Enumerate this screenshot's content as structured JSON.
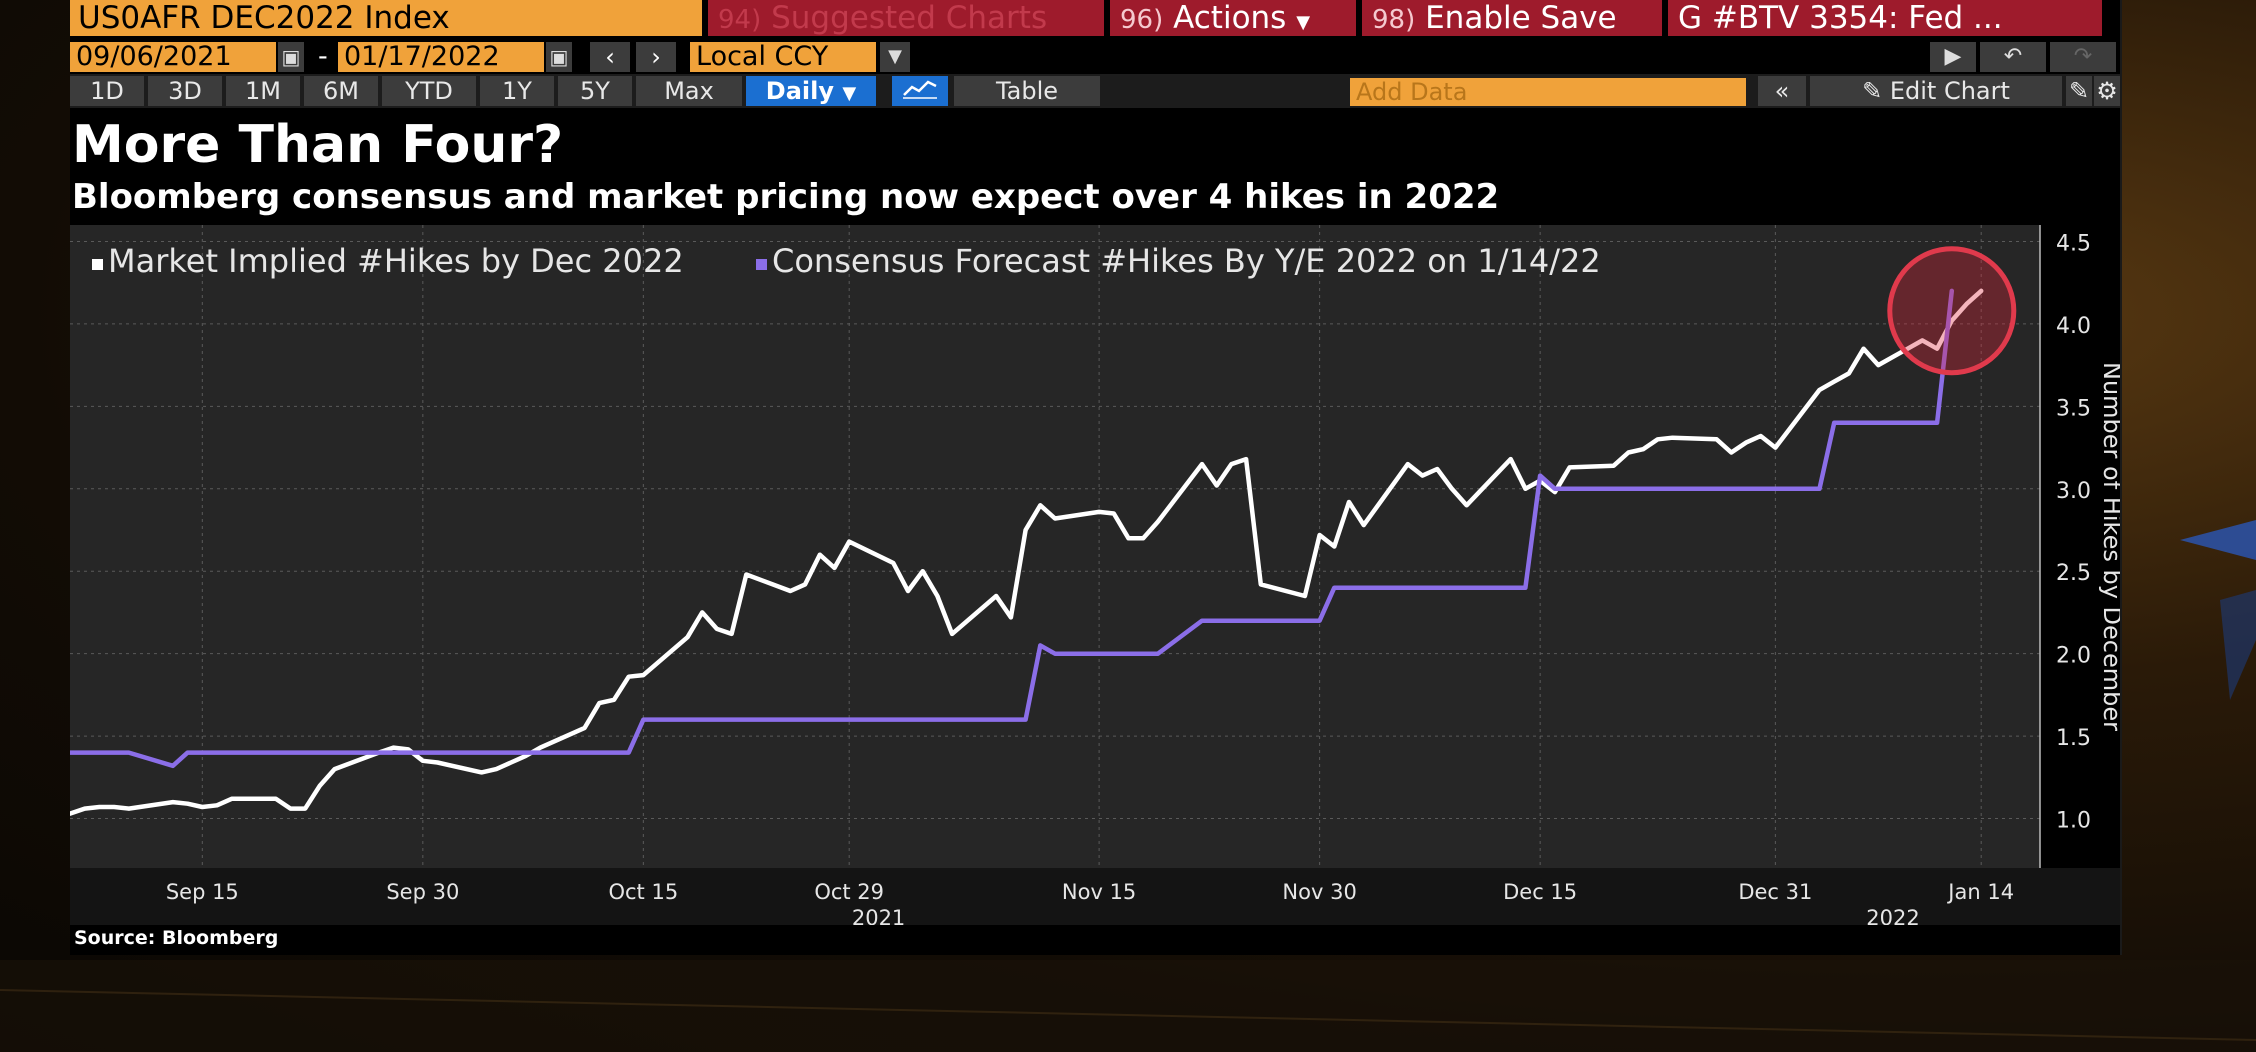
{
  "toolbar": {
    "ticker": "US0AFR DEC2022 Index",
    "suggested": {
      "num": "94)",
      "label": "Suggested Charts"
    },
    "actions": {
      "num": "96)",
      "label": "Actions"
    },
    "enable_save": {
      "num": "98)",
      "label": "Enable Save"
    },
    "news": "G #BTV 3354: Fed ...",
    "start_date": "09/06/2021",
    "end_date": "01/17/2022",
    "date_separator": "-",
    "currency": "Local CCY",
    "periods": [
      "1D",
      "3D",
      "1M",
      "6M",
      "YTD",
      "1Y",
      "5Y",
      "Max"
    ],
    "frequency": "Daily",
    "table_label": "Table",
    "add_data_placeholder": "Add Data",
    "edit_chart_label": "Edit Chart"
  },
  "icons": {
    "calendar": "calendar-icon",
    "prev": "chevron-left-icon",
    "next": "chevron-right-icon",
    "dropdown": "chevron-down-icon",
    "present": "presentation-icon",
    "undo": "undo-icon",
    "redo": "redo-icon",
    "line_chart": "line-chart-icon",
    "collapse": "double-chevron-left-icon",
    "pencil": "pencil-icon",
    "edit_alt": "edit-icon",
    "settings": "gear-icon"
  },
  "colors": {
    "accent_orange": "#f0a23a",
    "action_red": "#9e1b2c",
    "series_market": "#ffffff",
    "series_consensus": "#8b6ee8",
    "highlight_circle": "#e03a4c"
  },
  "source_label": "Source: Bloomberg",
  "chart_data": {
    "type": "line",
    "title": "More Than Four?",
    "subtitle": "Bloomberg consensus and market pricing now expect over 4 hikes in 2022",
    "ylabel": "Number of Hikes by December",
    "xlabel": "",
    "ylim": [
      0.7,
      4.6
    ],
    "yticks": [
      "1.0",
      "1.5",
      "2.0",
      "2.5",
      "3.0",
      "3.5",
      "4.0",
      "4.5"
    ],
    "xlim": [
      "2021-09-06",
      "2022-01-18"
    ],
    "xticks": [
      {
        "date": "2021-09-15",
        "label": "Sep 15"
      },
      {
        "date": "2021-09-30",
        "label": "Sep 30"
      },
      {
        "date": "2021-10-15",
        "label": "Oct 15"
      },
      {
        "date": "2021-10-29",
        "label": "Oct 29"
      },
      {
        "date": "2021-11-15",
        "label": "Nov 15"
      },
      {
        "date": "2021-11-30",
        "label": "Nov 30"
      },
      {
        "date": "2021-12-15",
        "label": "Dec 15"
      },
      {
        "date": "2021-12-31",
        "label": "Dec 31"
      },
      {
        "date": "2022-01-14",
        "label": "Jan 14"
      }
    ],
    "year_labels": [
      {
        "date": "2021-10-31",
        "label": "2021"
      },
      {
        "date": "2022-01-08",
        "label": "2022"
      }
    ],
    "grid": true,
    "legend_position": "top-left",
    "series": [
      {
        "name": "Market Implied #Hikes by Dec 2022",
        "color": "#ffffff",
        "points": [
          [
            "2021-09-06",
            1.03
          ],
          [
            "2021-09-07",
            1.06
          ],
          [
            "2021-09-08",
            1.07
          ],
          [
            "2021-09-09",
            1.07
          ],
          [
            "2021-09-10",
            1.06
          ],
          [
            "2021-09-13",
            1.1
          ],
          [
            "2021-09-14",
            1.09
          ],
          [
            "2021-09-15",
            1.07
          ],
          [
            "2021-09-16",
            1.08
          ],
          [
            "2021-09-17",
            1.12
          ],
          [
            "2021-09-20",
            1.12
          ],
          [
            "2021-09-21",
            1.06
          ],
          [
            "2021-09-22",
            1.06
          ],
          [
            "2021-09-23",
            1.2
          ],
          [
            "2021-09-24",
            1.3
          ],
          [
            "2021-09-27",
            1.4
          ],
          [
            "2021-09-28",
            1.43
          ],
          [
            "2021-09-29",
            1.42
          ],
          [
            "2021-09-30",
            1.35
          ],
          [
            "2021-10-01",
            1.34
          ],
          [
            "2021-10-04",
            1.28
          ],
          [
            "2021-10-05",
            1.3
          ],
          [
            "2021-10-06",
            1.34
          ],
          [
            "2021-10-07",
            1.38
          ],
          [
            "2021-10-08",
            1.43
          ],
          [
            "2021-10-11",
            1.55
          ],
          [
            "2021-10-12",
            1.7
          ],
          [
            "2021-10-13",
            1.72
          ],
          [
            "2021-10-14",
            1.86
          ],
          [
            "2021-10-15",
            1.87
          ],
          [
            "2021-10-18",
            2.1
          ],
          [
            "2021-10-19",
            2.25
          ],
          [
            "2021-10-20",
            2.15
          ],
          [
            "2021-10-21",
            2.12
          ],
          [
            "2021-10-22",
            2.48
          ],
          [
            "2021-10-25",
            2.38
          ],
          [
            "2021-10-26",
            2.42
          ],
          [
            "2021-10-27",
            2.6
          ],
          [
            "2021-10-28",
            2.52
          ],
          [
            "2021-10-29",
            2.68
          ],
          [
            "2021-11-01",
            2.55
          ],
          [
            "2021-11-02",
            2.38
          ],
          [
            "2021-11-03",
            2.5
          ],
          [
            "2021-11-04",
            2.35
          ],
          [
            "2021-11-05",
            2.12
          ],
          [
            "2021-11-08",
            2.35
          ],
          [
            "2021-11-09",
            2.22
          ],
          [
            "2021-11-10",
            2.75
          ],
          [
            "2021-11-11",
            2.9
          ],
          [
            "2021-11-12",
            2.82
          ],
          [
            "2021-11-15",
            2.86
          ],
          [
            "2021-11-16",
            2.85
          ],
          [
            "2021-11-17",
            2.7
          ],
          [
            "2021-11-18",
            2.7
          ],
          [
            "2021-11-19",
            2.8
          ],
          [
            "2021-11-22",
            3.15
          ],
          [
            "2021-11-23",
            3.02
          ],
          [
            "2021-11-24",
            3.15
          ],
          [
            "2021-11-25",
            3.18
          ],
          [
            "2021-11-26",
            2.42
          ],
          [
            "2021-11-29",
            2.35
          ],
          [
            "2021-11-30",
            2.72
          ],
          [
            "2021-12-01",
            2.65
          ],
          [
            "2021-12-02",
            2.92
          ],
          [
            "2021-12-03",
            2.78
          ],
          [
            "2021-12-06",
            3.15
          ],
          [
            "2021-12-07",
            3.08
          ],
          [
            "2021-12-08",
            3.12
          ],
          [
            "2021-12-09",
            3.0
          ],
          [
            "2021-12-10",
            2.9
          ],
          [
            "2021-12-13",
            3.18
          ],
          [
            "2021-12-14",
            3.0
          ],
          [
            "2021-12-15",
            3.05
          ],
          [
            "2021-12-16",
            2.98
          ],
          [
            "2021-12-17",
            3.13
          ],
          [
            "2021-12-20",
            3.14
          ],
          [
            "2021-12-21",
            3.22
          ],
          [
            "2021-12-22",
            3.24
          ],
          [
            "2021-12-23",
            3.3
          ],
          [
            "2021-12-24",
            3.31
          ],
          [
            "2021-12-27",
            3.3
          ],
          [
            "2021-12-28",
            3.22
          ],
          [
            "2021-12-29",
            3.28
          ],
          [
            "2021-12-30",
            3.32
          ],
          [
            "2021-12-31",
            3.25
          ],
          [
            "2022-01-03",
            3.6
          ],
          [
            "2022-01-04",
            3.65
          ],
          [
            "2022-01-05",
            3.7
          ],
          [
            "2022-01-06",
            3.85
          ],
          [
            "2022-01-07",
            3.75
          ],
          [
            "2022-01-10",
            3.9
          ],
          [
            "2022-01-11",
            3.85
          ],
          [
            "2022-01-12",
            4.02
          ],
          [
            "2022-01-13",
            4.12
          ],
          [
            "2022-01-14",
            4.2
          ]
        ]
      },
      {
        "name": "Consensus Forecast #Hikes By Y/E 2022 on 1/14/22",
        "color": "#8b6ee8",
        "points": [
          [
            "2021-09-06",
            1.4
          ],
          [
            "2021-09-10",
            1.4
          ],
          [
            "2021-09-13",
            1.32
          ],
          [
            "2021-09-14",
            1.4
          ],
          [
            "2021-10-14",
            1.4
          ],
          [
            "2021-10-15",
            1.6
          ],
          [
            "2021-11-10",
            1.6
          ],
          [
            "2021-11-11",
            2.05
          ],
          [
            "2021-11-12",
            2.0
          ],
          [
            "2021-11-19",
            2.0
          ],
          [
            "2021-11-22",
            2.2
          ],
          [
            "2021-11-30",
            2.2
          ],
          [
            "2021-12-01",
            2.4
          ],
          [
            "2021-12-14",
            2.4
          ],
          [
            "2021-12-15",
            3.08
          ],
          [
            "2021-12-16",
            3.0
          ],
          [
            "2022-01-03",
            3.0
          ],
          [
            "2022-01-04",
            3.4
          ],
          [
            "2022-01-11",
            3.4
          ],
          [
            "2022-01-12",
            4.2
          ]
        ]
      }
    ],
    "annotations": [
      {
        "type": "circle-highlight",
        "date": "2022-01-12",
        "value": 4.08,
        "color": "#e03a4c"
      }
    ]
  }
}
